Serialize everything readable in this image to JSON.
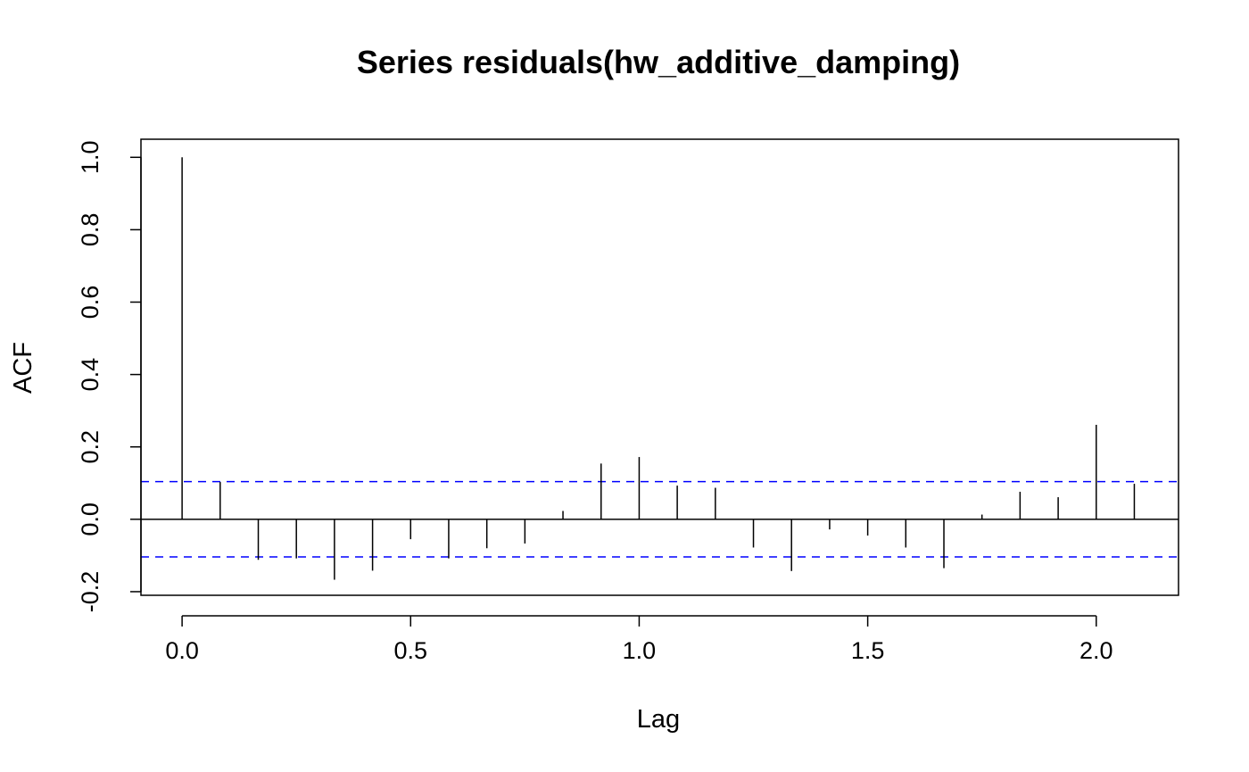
{
  "chart_data": {
    "type": "bar",
    "title": "Series  residuals(hw_additive_damping)",
    "xlabel": "Lag",
    "ylabel": "ACF",
    "xlim": [
      -0.09,
      2.18
    ],
    "ylim": [
      -0.21,
      1.05
    ],
    "x_ticks": [
      0.0,
      0.5,
      1.0,
      1.5,
      2.0
    ],
    "x_tick_labels": [
      "0.0",
      "0.5",
      "1.0",
      "1.5",
      "2.0"
    ],
    "y_ticks": [
      -0.2,
      0.0,
      0.2,
      0.4,
      0.6,
      0.8,
      1.0
    ],
    "y_tick_labels": [
      "-0.2",
      "0.0",
      "0.2",
      "0.4",
      "0.6",
      "0.8",
      "1.0"
    ],
    "confidence_bound": 0.104,
    "confidence_color": "#0000ff",
    "lag": [
      0.0,
      0.0833,
      0.1667,
      0.25,
      0.3333,
      0.4167,
      0.5,
      0.5833,
      0.6667,
      0.75,
      0.8333,
      0.9167,
      1.0,
      1.0833,
      1.1667,
      1.25,
      1.3333,
      1.4167,
      1.5,
      1.5833,
      1.6667,
      1.75,
      1.8333,
      1.9167,
      2.0,
      2.0833
    ],
    "acf": [
      1.0,
      0.103,
      -0.112,
      -0.108,
      -0.167,
      -0.142,
      -0.055,
      -0.108,
      -0.08,
      -0.067,
      0.023,
      0.154,
      0.172,
      0.093,
      0.087,
      -0.078,
      -0.143,
      -0.028,
      -0.045,
      -0.078,
      -0.135,
      0.013,
      0.076,
      0.061,
      0.261,
      0.098
    ],
    "grid": false,
    "legend": "none"
  }
}
